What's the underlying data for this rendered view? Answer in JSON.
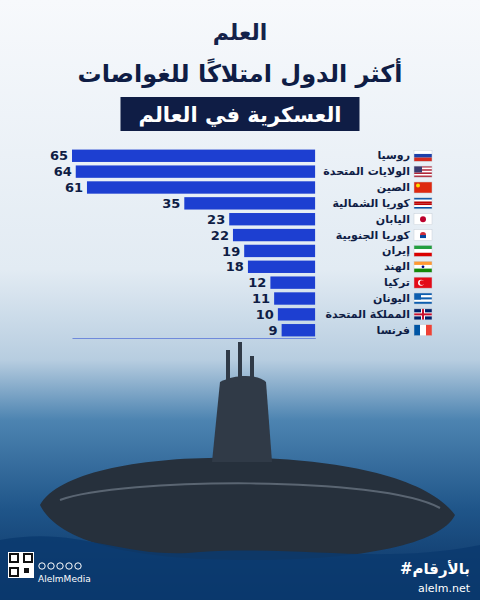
{
  "chart_data": {
    "type": "bar",
    "orientation": "horizontal",
    "title": "أكثر الدول امتلاكًا للغواصات",
    "subtitle": "العسكرية في العالم",
    "categories": [
      "روسيا",
      "الولايات المتحدة",
      "الصين",
      "كوريا الشمالية",
      "اليابان",
      "كوريا الجنوبية",
      "إيران",
      "الهند",
      "تركيا",
      "اليونان",
      "المملكة المتحدة",
      "فرنسا"
    ],
    "values": [
      65,
      64,
      61,
      35,
      23,
      22,
      19,
      18,
      12,
      11,
      10,
      9
    ],
    "color": "#1d3fd1",
    "xlim": [
      0,
      65
    ],
    "xticks": [],
    "tick_labels": "y",
    "data_labels": true,
    "grid": false
  },
  "branding": {
    "logo": "العلم",
    "hashtag": "#بالأرقام",
    "website": "aleIm.net",
    "handle": "AleImMedia"
  }
}
